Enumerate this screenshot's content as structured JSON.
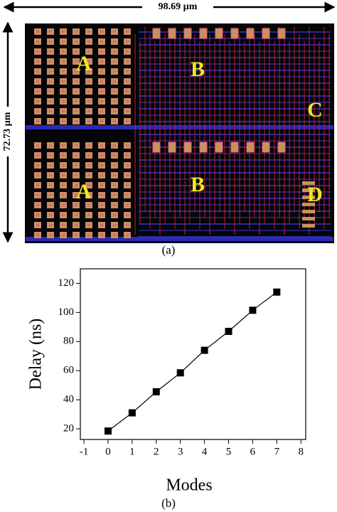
{
  "figure_a": {
    "width_label": "98.69 µm",
    "height_label": "72.73 µm",
    "block_labels": [
      "A",
      "B",
      "C",
      "A",
      "B",
      "D"
    ],
    "caption": "(a)"
  },
  "chart_data": {
    "type": "line",
    "xlabel": "Modes",
    "ylabel": "Delay (ns)",
    "x": [
      0,
      1,
      2,
      3,
      4,
      5,
      6,
      7
    ],
    "values": [
      18.5,
      31,
      45.5,
      58.5,
      74,
      87,
      101.5,
      114
    ],
    "color": "#000000",
    "marker": "square",
    "xlim": [
      -1.15,
      8.2
    ],
    "ylim": [
      12.7,
      130
    ],
    "xticks": [
      -1,
      0,
      1,
      2,
      3,
      4,
      5,
      6,
      7,
      8
    ],
    "yticks": [
      20,
      40,
      60,
      80,
      100,
      120
    ],
    "caption": "(b)"
  }
}
